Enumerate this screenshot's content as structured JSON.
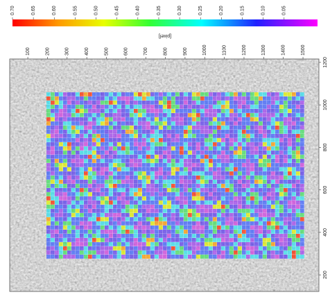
{
  "chart_data": {
    "type": "heatmap",
    "colorbar_label": "[pixel]",
    "clim": [
      0.7,
      -0.03
    ],
    "colorbar_ticks": [
      {
        "value": 0.7,
        "label": "0.70"
      },
      0.65,
      {
        "value": 0.6,
        "label": "0.60"
      },
      0.55,
      {
        "value": 0.5,
        "label": "0.50"
      },
      0.45,
      {
        "value": 0.4,
        "label": "0.40"
      },
      0.35,
      {
        "value": 0.3,
        "label": "0.30"
      },
      0.25,
      {
        "value": 0.2,
        "label": "0.20"
      },
      0.15,
      {
        "value": 0.1,
        "label": "0.10"
      },
      0.05
    ],
    "xlim": [
      8,
      1581
    ],
    "xticks": [
      100,
      200,
      300,
      400,
      500,
      600,
      700,
      800,
      900,
      1000,
      1100,
      1200,
      1300,
      1400,
      1500
    ],
    "ylim": [
      122,
      1216
    ],
    "yticks": [
      200,
      400,
      600,
      800,
      1000,
      1200
    ]
  }
}
